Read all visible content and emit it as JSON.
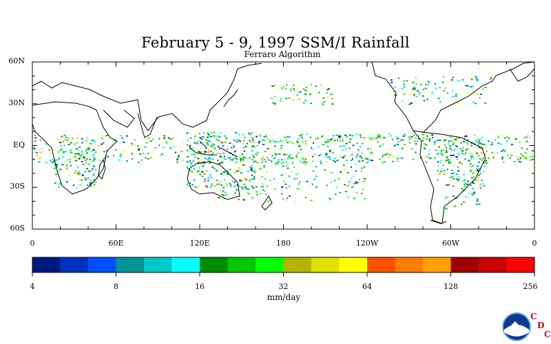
{
  "title": "February 5 - 9, 1997 SSM/I Rainfall",
  "subtitle": "Ferraro Algorithm",
  "lat_labels": [
    "60N",
    "30N",
    "EQ",
    "30S",
    "60S"
  ],
  "lon_labels": [
    "0",
    "60E",
    "120E",
    "180",
    "120W",
    "60W",
    "0"
  ],
  "colorbar": {
    "tick_labels": [
      "4",
      "8",
      "16",
      "32",
      "64",
      "128",
      "256"
    ],
    "units": "mm/day",
    "colors": [
      "#001a80",
      "#0032c0",
      "#0050ff",
      "#009696",
      "#00c8c8",
      "#00ffff",
      "#008c00",
      "#00c800",
      "#00ff00",
      "#b4b400",
      "#e1e100",
      "#ffff00",
      "#ff5000",
      "#ff7d00",
      "#ffa000",
      "#a00000",
      "#c80000",
      "#ff0000"
    ]
  },
  "map": {
    "projection": "cylindrical equidistant",
    "lon_range": [
      0,
      360
    ],
    "lat_range": [
      -60,
      60
    ],
    "rain_bands": [
      {
        "lon": [
          0,
          360
        ],
        "lat": [
          -12,
          8
        ],
        "density": 0.35
      },
      {
        "lon": [
          160,
          290
        ],
        "lat": [
          3,
          9
        ],
        "density": 0.45
      },
      {
        "lon": [
          130,
          240
        ],
        "lat": [
          -40,
          -5
        ],
        "density": 0.25
      },
      {
        "lon": [
          290,
          325
        ],
        "lat": [
          -30,
          5
        ],
        "density": 0.6
      },
      {
        "lon": [
          15,
          45
        ],
        "lat": [
          -30,
          5
        ],
        "density": 0.55
      },
      {
        "lon": [
          110,
          160
        ],
        "lat": [
          -30,
          10
        ],
        "density": 0.5
      },
      {
        "lon": [
          170,
          215
        ],
        "lat": [
          30,
          45
        ],
        "density": 0.35
      },
      {
        "lon": [
          255,
          330
        ],
        "lat": [
          30,
          50
        ],
        "density": 0.3
      },
      {
        "lon": [
          295,
          320
        ],
        "lat": [
          -45,
          -30
        ],
        "density": 0.35
      }
    ]
  },
  "logo": {
    "name": "NOAA",
    "letters": [
      "C",
      "D",
      "C"
    ]
  }
}
